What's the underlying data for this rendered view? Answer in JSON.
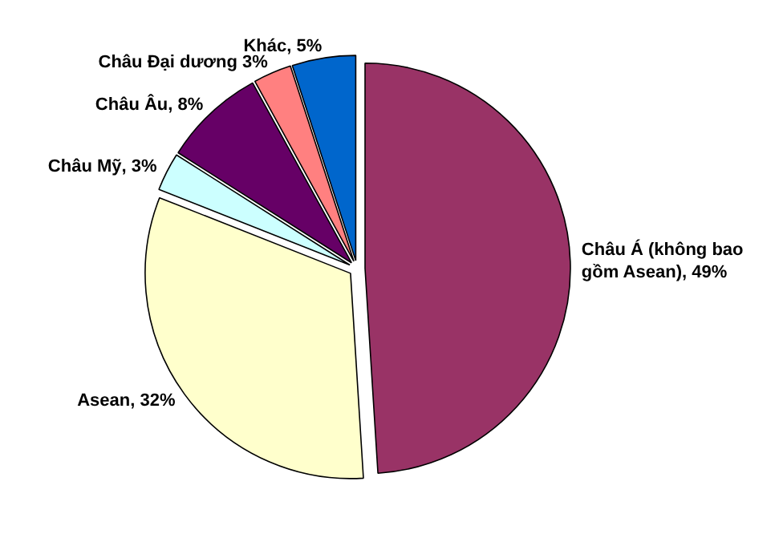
{
  "chart_data": {
    "type": "pie",
    "categories": [
      "Châu Á (không bao gồm Asean)",
      "Asean",
      "Châu Mỹ",
      "Châu Âu",
      "Châu Đại dương",
      "Khác"
    ],
    "values": [
      49,
      32,
      3,
      8,
      3,
      5
    ],
    "value_labels": [
      ", 49%",
      ", 32%",
      ", 3%",
      ", 8%",
      " 3%",
      ", 5%"
    ],
    "colors": [
      "#993366",
      "#ffffcc",
      "#ccffff",
      "#660066",
      "#ff8080",
      "#0066cc"
    ]
  }
}
